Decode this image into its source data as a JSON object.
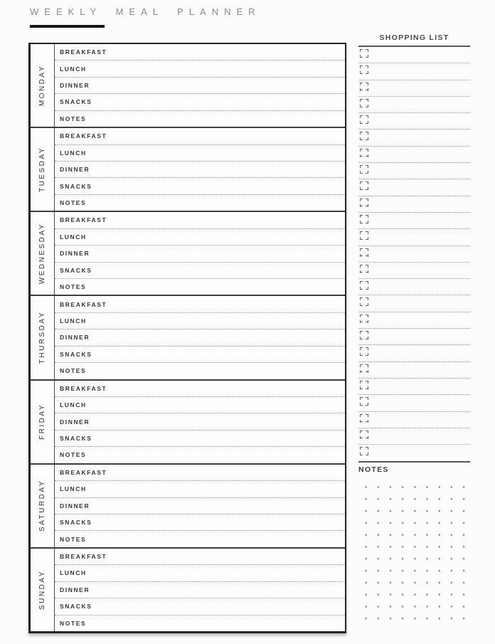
{
  "page": {
    "title": "WEEKLY MEAL PLANNER"
  },
  "planner": {
    "days": [
      "MONDAY",
      "TUESDAY",
      "WEDNESDAY",
      "THURSDAY",
      "FRIDAY",
      "SATURDAY",
      "SUNDAY"
    ],
    "row_labels": [
      "BREAKFAST",
      "LUNCH",
      "DINNER",
      "SNACKS",
      "NOTES"
    ],
    "entries": {
      "MONDAY": {
        "BREAKFAST": "",
        "LUNCH": "",
        "DINNER": "",
        "SNACKS": "",
        "NOTES": ""
      },
      "TUESDAY": {
        "BREAKFAST": "",
        "LUNCH": "",
        "DINNER": "",
        "SNACKS": "",
        "NOTES": ""
      },
      "WEDNESDAY": {
        "BREAKFAST": "",
        "LUNCH": "",
        "DINNER": "",
        "SNACKS": "",
        "NOTES": ""
      },
      "THURSDAY": {
        "BREAKFAST": "",
        "LUNCH": "",
        "DINNER": "",
        "SNACKS": "",
        "NOTES": ""
      },
      "FRIDAY": {
        "BREAKFAST": "",
        "LUNCH": "",
        "DINNER": "",
        "SNACKS": "",
        "NOTES": ""
      },
      "SATURDAY": {
        "BREAKFAST": "",
        "LUNCH": "",
        "DINNER": "",
        "SNACKS": "",
        "NOTES": ""
      },
      "SUNDAY": {
        "BREAKFAST": "",
        "LUNCH": "",
        "DINNER": "",
        "SNACKS": "",
        "NOTES": ""
      }
    }
  },
  "shopping_list": {
    "title": "SHOPPING LIST",
    "item_count": 25,
    "items": [
      "",
      "",
      "",
      "",
      "",
      "",
      "",
      "",
      "",
      "",
      "",
      "",
      "",
      "",
      "",
      "",
      "",
      "",
      "",
      "",
      "",
      "",
      "",
      "",
      ""
    ],
    "checkbox_icon": "corner-bracket-square",
    "checked_states": [
      false,
      false,
      false,
      false,
      false,
      false,
      false,
      false,
      false,
      false,
      false,
      false,
      false,
      false,
      false,
      false,
      false,
      false,
      false,
      false,
      false,
      false,
      false,
      false,
      false
    ]
  },
  "notes": {
    "title": "NOTES",
    "grid": {
      "rows": 12,
      "cols": 10
    }
  },
  "colors": {
    "title_text": "#8a8a8a",
    "title_underline": "#161616",
    "table_border": "#262626",
    "day_divider": "#3d3d3d",
    "label_text": "#363636",
    "dotted_line": "#999999",
    "shopping_rule": "#565656",
    "checkbox": "#666666",
    "dot_grid": "#898989",
    "background": "#fcfcfc"
  }
}
